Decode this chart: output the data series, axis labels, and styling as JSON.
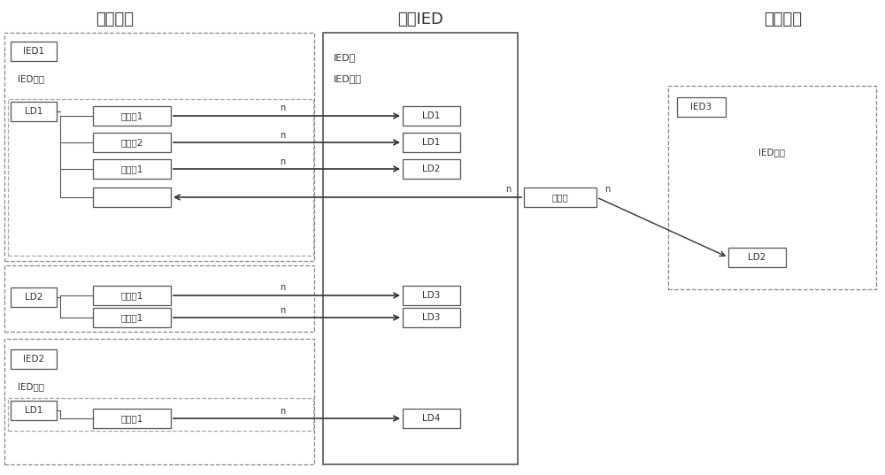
{
  "title_left": "发送设备",
  "title_center": "本地IED",
  "title_right": "接收设备",
  "bg_color": "#ffffff",
  "text_color": "#333333",
  "font_size": 9,
  "title_font_size": 13,
  "ied_name_text": "IED名",
  "ied_desc_text": "IED描述",
  "labels": {
    "IED1": "IED1",
    "IED2": "IED2",
    "IED3": "IED3",
    "LD1": "LD1",
    "LD2": "LD2",
    "LD3": "LD3",
    "LD4": "LD4",
    "ctrl1": "控制块1",
    "ctrl2": "控制块2",
    "ctrl": "控制块"
  }
}
